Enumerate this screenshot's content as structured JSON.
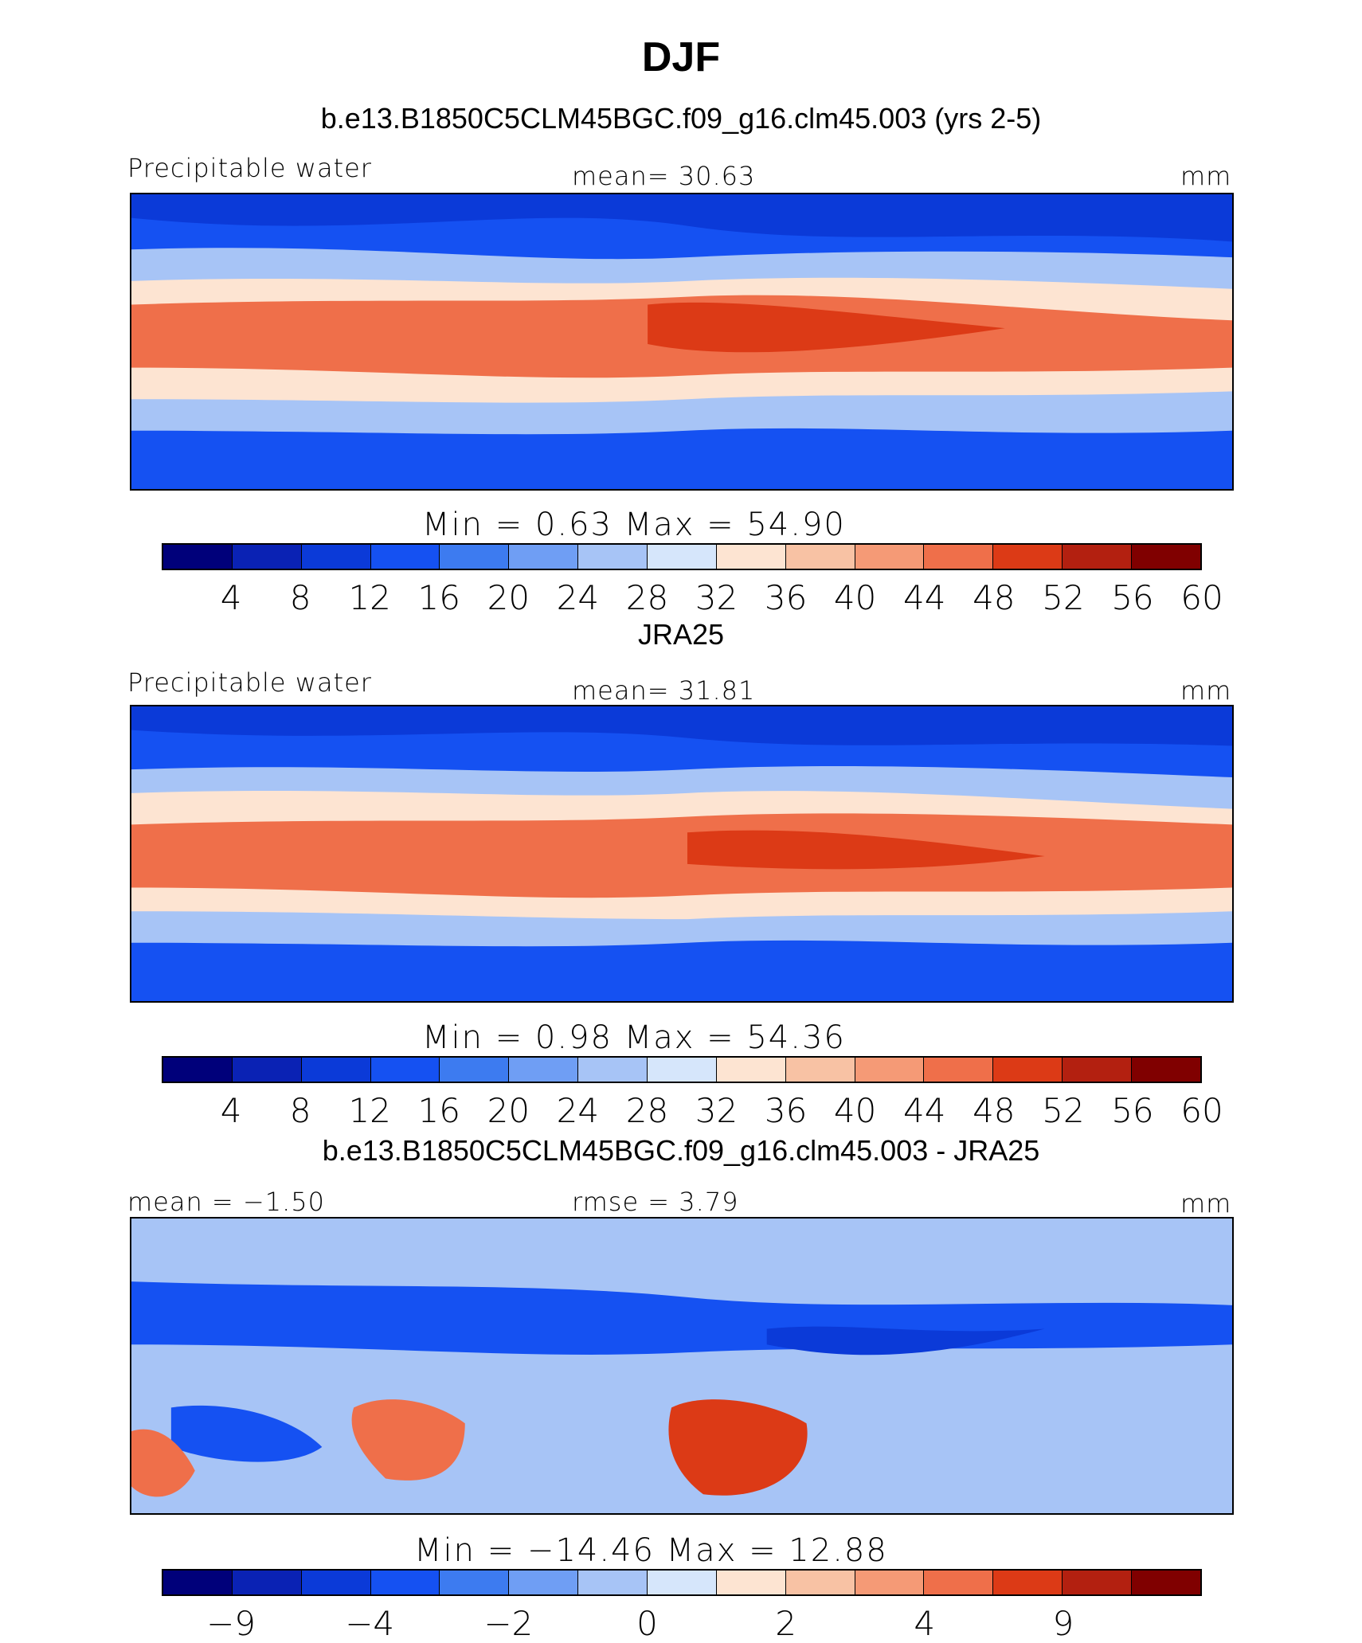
{
  "title": "DJF",
  "panels": [
    {
      "title": "b.e13.B1850C5CLM45BGC.f09_g16.clm45.003 (yrs 2-5)",
      "left_label": "Precipitable water",
      "center_label": "mean=   30.63",
      "unit": "mm",
      "min_max": "Min  =     0.63  Max  =    54.90",
      "ticks": [
        "4",
        "8",
        "12",
        "16",
        "20",
        "24",
        "28",
        "32",
        "36",
        "40",
        "44",
        "48",
        "52",
        "56",
        "60"
      ]
    },
    {
      "title": "JRA25",
      "left_label": "Precipitable water",
      "center_label": "mean=   31.81",
      "unit": "mm",
      "min_max": "Min  =     0.98  Max  =    54.36",
      "ticks": [
        "4",
        "8",
        "12",
        "16",
        "20",
        "24",
        "28",
        "32",
        "36",
        "40",
        "44",
        "48",
        "52",
        "56",
        "60"
      ]
    },
    {
      "title": "b.e13.B1850C5CLM45BGC.f09_g16.clm45.003 - JRA25",
      "left_label": "mean  =   −1.50",
      "center_label": "rmse  =     3.79",
      "unit": "mm",
      "min_max": "Min  =  −14.46  Max  =    12.88",
      "ticks": [
        "−9",
        "−4",
        "−2",
        "0",
        "2",
        "4",
        "9"
      ]
    }
  ],
  "colorbar_colors": [
    "#00007a",
    "#0a22b4",
    "#0b3ad8",
    "#1551f2",
    "#3d7bf0",
    "#6f9ef4",
    "#a7c4f6",
    "#d6e6fb",
    "#fde4d2",
    "#f8c2a4",
    "#f59a76",
    "#ef6f4a",
    "#dc3a16",
    "#b32010",
    "#800000"
  ]
}
